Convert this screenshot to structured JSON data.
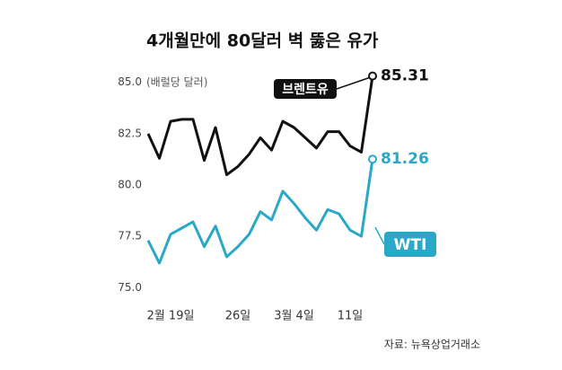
{
  "chart_data": {
    "type": "line",
    "title": "4개월만에 80달러 벽 뚫은 유가",
    "y_label": "(배럴당 달러)",
    "source": "자료: 뉴욕상업거래소",
    "categories": [
      null,
      null,
      "2월 19일",
      null,
      null,
      null,
      null,
      null,
      "26일",
      null,
      null,
      null,
      null,
      "3월 4일",
      null,
      null,
      null,
      null,
      "11일",
      null,
      null
    ],
    "series": [
      {
        "name": "브렌트유",
        "color": "#111111",
        "values": [
          82.5,
          81.3,
          83.1,
          83.2,
          83.2,
          81.2,
          82.8,
          80.5,
          80.9,
          81.5,
          82.3,
          81.7,
          83.1,
          82.8,
          82.3,
          81.8,
          82.6,
          82.6,
          81.9,
          81.6,
          85.31
        ]
      },
      {
        "name": "WTI",
        "color": "#2aa8c8",
        "values": [
          77.3,
          76.2,
          77.6,
          77.9,
          78.2,
          77.0,
          78.0,
          76.5,
          77.0,
          77.6,
          78.7,
          78.3,
          79.7,
          79.1,
          78.4,
          77.8,
          78.8,
          78.6,
          77.8,
          77.5,
          81.26
        ]
      }
    ],
    "ylim": [
      74.4,
      85.6
    ],
    "yticks": [
      {
        "value": 75,
        "label": "75.0"
      },
      77.5,
      {
        "value": 80,
        "label": "80.0"
      },
      82.5,
      {
        "value": 85,
        "label": "85.0"
      }
    ],
    "grid": false
  }
}
